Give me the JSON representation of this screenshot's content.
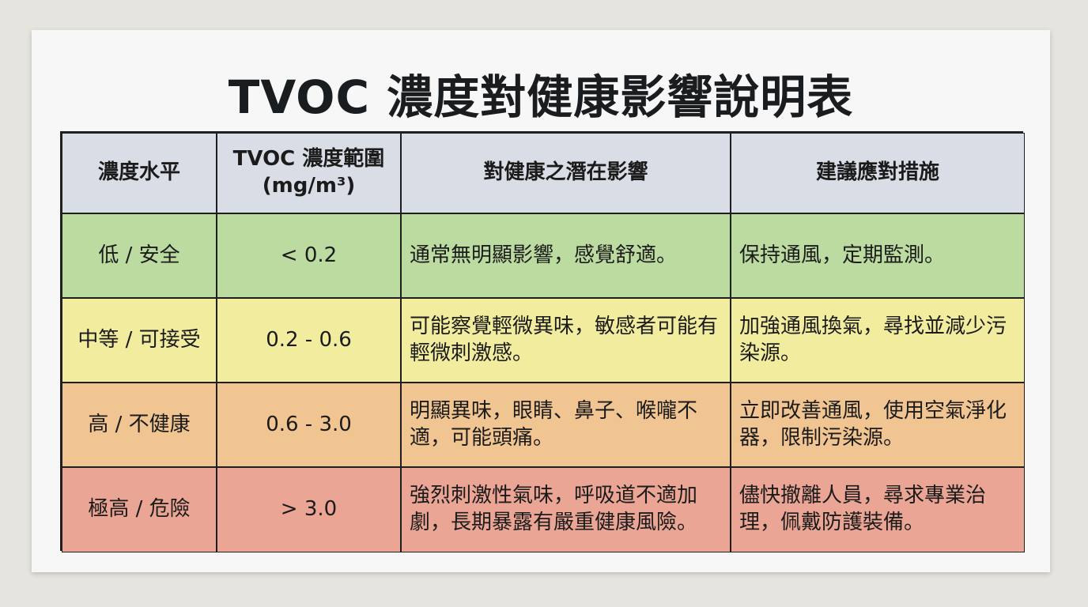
{
  "title": "TVOC 濃度對健康影響說明表",
  "table": {
    "header": [
      "濃度水平",
      "TVOC 濃度範圍\n(mg/m³)",
      "對健康之潛在影響",
      "建議應對措施"
    ],
    "rows": [
      [
        "低 / 安全",
        "< 0.2",
        "通常無明顯影響，感覺舒適。",
        "保持通風，定期監測。"
      ],
      [
        "中等 / 可接受",
        "0.2 - 0.6",
        "可能察覺輕微異味，敏感者可能有輕微刺激感。",
        "加強通風換氣，尋找並減少污染源。"
      ],
      [
        "高 / 不健康",
        "0.6 - 3.0",
        "明顯異味，眼睛、鼻子、喉嚨不適，可能頭痛。",
        "立即改善通風，使用空氣淨化器，限制污染源。"
      ],
      [
        "極高 / 危險",
        "> 3.0",
        "強烈刺激性氣味，呼吸道不適加劇，長期暴露有嚴重健康風險。",
        "儘快撤離人員，尋求專業治理，佩戴防護裝備。"
      ]
    ]
  }
}
